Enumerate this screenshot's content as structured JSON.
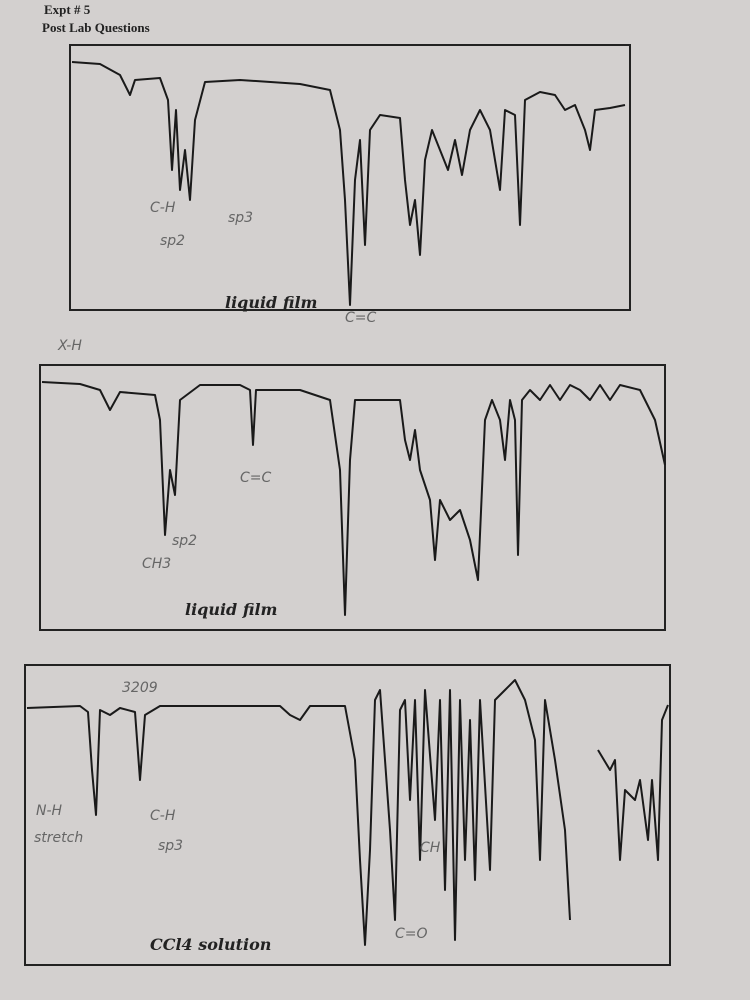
{
  "header": {
    "expt": "Expt # 5",
    "title": "Post Lab Questions"
  },
  "spectra": [
    {
      "label": "liquid film",
      "notes": [
        "C-H",
        "sp2",
        "sp3",
        "C=C"
      ]
    },
    {
      "label": "liquid film",
      "notes": [
        "X-H",
        "C=C",
        "CH3",
        "sp2"
      ]
    },
    {
      "label": "CCl4 solution",
      "notes": [
        "N-H",
        "stretch",
        "C-H",
        "sp3",
        "3209",
        "C=O",
        "CH"
      ]
    }
  ]
}
